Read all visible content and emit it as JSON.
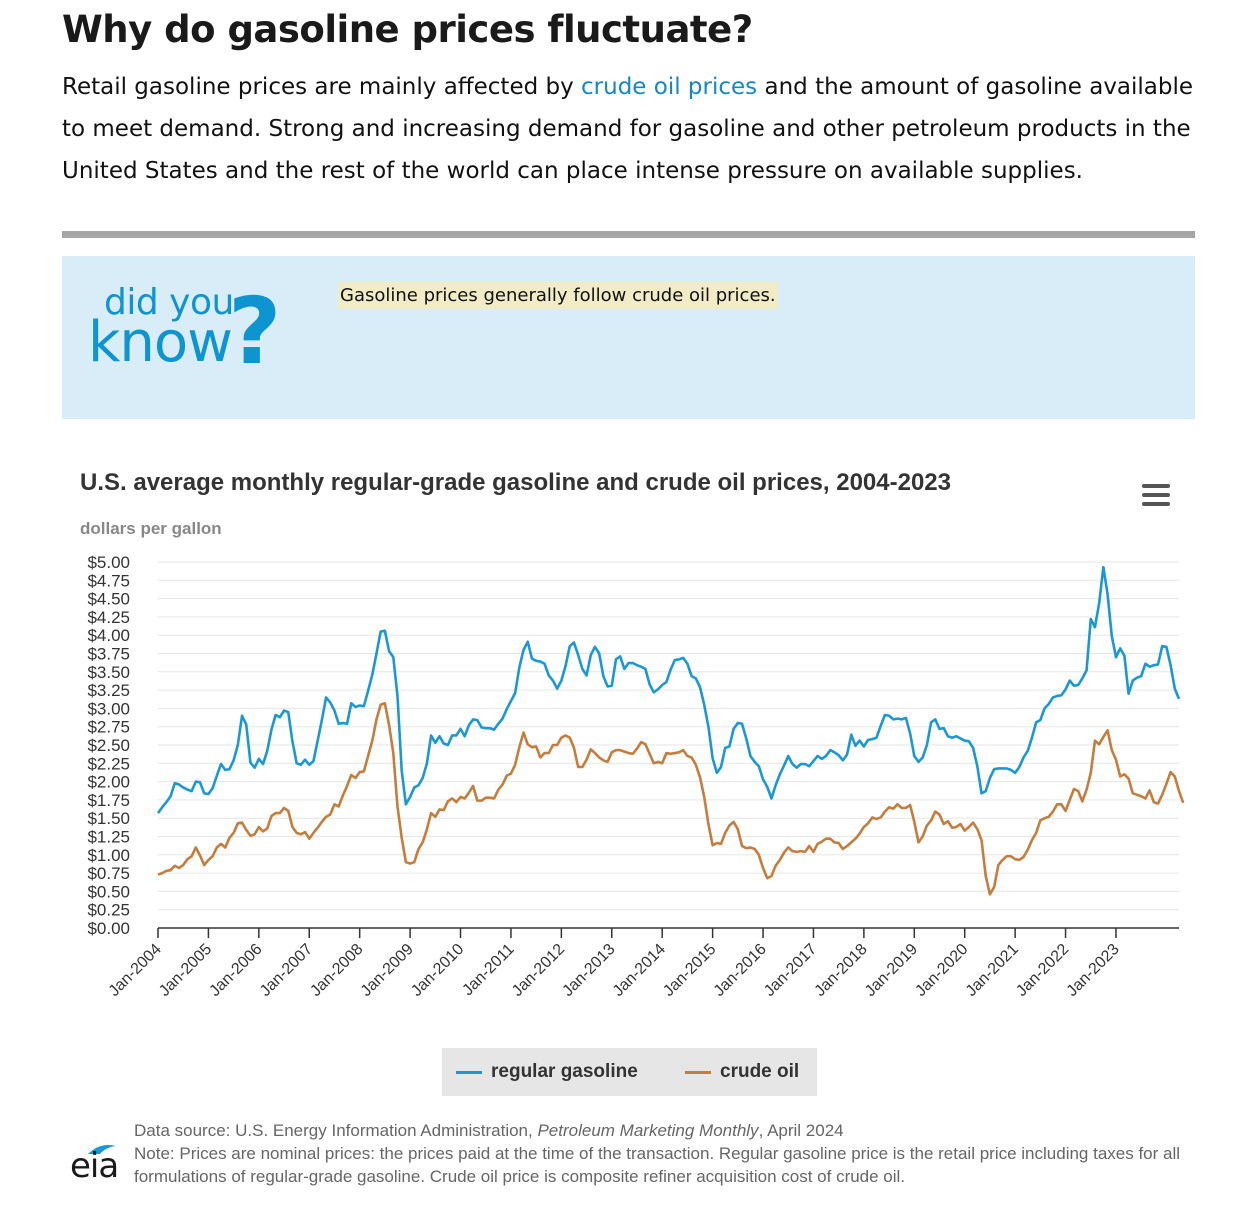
{
  "heading": "Why do gasoline prices fluctuate?",
  "intro": {
    "before": "Retail gasoline prices are mainly affected by ",
    "link": "crude oil prices",
    "after": " and the amount of gasoline available to meet demand. Strong and increasing demand for gasoline and other petroleum products in the United States and the rest of the world can place intense pressure on available supplies."
  },
  "did_you_know": {
    "line1": "did you",
    "line2": "know",
    "mark": "?",
    "fact": "Gasoline prices generally follow crude oil prices."
  },
  "menu_icon": "hamburger-menu-icon",
  "footer": {
    "logo_text": "eia",
    "source_prefix": "Data source: U.S. Energy Information Administration, ",
    "source_italic": "Petroleum Marketing Monthly",
    "source_suffix": ", April 2024",
    "note": "Note: Prices are nominal prices: the prices paid at the time of the transaction. Regular gasoline price is the retail price including taxes for all formulations of regular-grade gasoline. Crude oil price is composite refiner acquisition cost of crude oil."
  },
  "chart_data": {
    "type": "line",
    "title": "U.S. average monthly regular-grade gasoline and crude oil prices, 2004-2023",
    "ylabel": "dollars per gallon",
    "xlabel": "",
    "ylim": [
      0,
      5
    ],
    "ytick_labels": [
      "$0.00",
      "$0.25",
      "$0.50",
      "$0.75",
      "$1.00",
      "$1.25",
      "$1.50",
      "$1.75",
      "$2.00",
      "$2.25",
      "$2.50",
      "$2.75",
      "$3.00",
      "$3.25",
      "$3.50",
      "$3.75",
      "$4.00",
      "$4.25",
      "$4.50",
      "$4.75",
      "$5.00"
    ],
    "xtick_labels": [
      "Jan-2004",
      "Jan-2005",
      "Jan-2006",
      "Jan-2007",
      "Jan-2008",
      "Jan-2009",
      "Jan-2010",
      "Jan-2011",
      "Jan-2012",
      "Jan-2013",
      "Jan-2014",
      "Jan-2015",
      "Jan-2016",
      "Jan-2017",
      "Jan-2018",
      "Jan-2019",
      "Jan-2020",
      "Jan-2021",
      "Jan-2022",
      "Jan-2023"
    ],
    "grid": true,
    "legend_position": "bottom",
    "colors": {
      "gasoline": "#1b98d3",
      "crude": "#c57d3e"
    },
    "x_start": "Jan-2004",
    "frequency": "monthly",
    "series": [
      {
        "name": "regular gasoline",
        "values": [
          1.57,
          1.65,
          1.72,
          1.8,
          1.98,
          1.96,
          1.92,
          1.89,
          1.87,
          2.0,
          1.99,
          1.84,
          1.83,
          1.91,
          2.08,
          2.24,
          2.16,
          2.17,
          2.29,
          2.5,
          2.9,
          2.78,
          2.26,
          2.19,
          2.31,
          2.24,
          2.42,
          2.71,
          2.91,
          2.88,
          2.97,
          2.95,
          2.55,
          2.25,
          2.23,
          2.3,
          2.23,
          2.28,
          2.56,
          2.84,
          3.15,
          3.08,
          2.97,
          2.79,
          2.8,
          2.79,
          3.07,
          3.02,
          3.04,
          3.03,
          3.24,
          3.46,
          3.75,
          4.05,
          4.06,
          3.78,
          3.7,
          3.17,
          2.15,
          1.69,
          1.79,
          1.92,
          1.95,
          2.05,
          2.25,
          2.63,
          2.53,
          2.62,
          2.52,
          2.5,
          2.63,
          2.63,
          2.72,
          2.62,
          2.77,
          2.85,
          2.84,
          2.74,
          2.73,
          2.73,
          2.71,
          2.79,
          2.86,
          2.99,
          3.1,
          3.21,
          3.56,
          3.8,
          3.91,
          3.68,
          3.65,
          3.64,
          3.61,
          3.45,
          3.38,
          3.27,
          3.38,
          3.58,
          3.85,
          3.9,
          3.73,
          3.54,
          3.45,
          3.73,
          3.84,
          3.75,
          3.44,
          3.3,
          3.31,
          3.67,
          3.71,
          3.54,
          3.62,
          3.62,
          3.59,
          3.57,
          3.54,
          3.33,
          3.22,
          3.26,
          3.32,
          3.36,
          3.53,
          3.66,
          3.67,
          3.69,
          3.61,
          3.44,
          3.41,
          3.29,
          3.05,
          2.75,
          2.32,
          2.12,
          2.2,
          2.46,
          2.48,
          2.72,
          2.8,
          2.79,
          2.59,
          2.35,
          2.27,
          2.21,
          2.03,
          1.93,
          1.77,
          1.95,
          2.1,
          2.22,
          2.35,
          2.24,
          2.19,
          2.24,
          2.24,
          2.21,
          2.28,
          2.35,
          2.31,
          2.35,
          2.43,
          2.4,
          2.36,
          2.29,
          2.37,
          2.64,
          2.49,
          2.56,
          2.48,
          2.57,
          2.58,
          2.6,
          2.76,
          2.91,
          2.9,
          2.85,
          2.86,
          2.85,
          2.87,
          2.66,
          2.35,
          2.27,
          2.33,
          2.5,
          2.81,
          2.85,
          2.72,
          2.73,
          2.62,
          2.6,
          2.62,
          2.59,
          2.56,
          2.55,
          2.46,
          2.21,
          1.84,
          1.87,
          2.05,
          2.17,
          2.18,
          2.18,
          2.18,
          2.16,
          2.12,
          2.2,
          2.33,
          2.42,
          2.6,
          2.81,
          2.84,
          3.0,
          3.06,
          3.15,
          3.17,
          3.18,
          3.26,
          3.38,
          3.31,
          3.32,
          3.41,
          3.52,
          4.22,
          4.11,
          4.44,
          4.93,
          4.56,
          3.99,
          3.7,
          3.82,
          3.72,
          3.2,
          3.38,
          3.42,
          3.44,
          3.61,
          3.57,
          3.59,
          3.6,
          3.85,
          3.84,
          3.59,
          3.27,
          3.13
        ]
      },
      {
        "name": "crude oil",
        "values": [
          0.73,
          0.75,
          0.78,
          0.79,
          0.85,
          0.82,
          0.86,
          0.94,
          0.98,
          1.1,
          0.99,
          0.86,
          0.93,
          0.98,
          1.1,
          1.15,
          1.1,
          1.23,
          1.3,
          1.43,
          1.44,
          1.34,
          1.26,
          1.28,
          1.38,
          1.32,
          1.36,
          1.53,
          1.57,
          1.57,
          1.64,
          1.6,
          1.38,
          1.3,
          1.28,
          1.31,
          1.22,
          1.3,
          1.37,
          1.45,
          1.52,
          1.55,
          1.69,
          1.66,
          1.81,
          1.94,
          2.09,
          2.05,
          2.13,
          2.14,
          2.35,
          2.56,
          2.85,
          3.05,
          3.07,
          2.77,
          2.39,
          1.66,
          1.23,
          0.9,
          0.88,
          0.9,
          1.08,
          1.17,
          1.35,
          1.57,
          1.52,
          1.62,
          1.61,
          1.73,
          1.77,
          1.72,
          1.79,
          1.77,
          1.85,
          1.94,
          1.74,
          1.74,
          1.78,
          1.78,
          1.77,
          1.89,
          1.96,
          2.08,
          2.11,
          2.23,
          2.47,
          2.67,
          2.51,
          2.47,
          2.48,
          2.33,
          2.39,
          2.39,
          2.5,
          2.5,
          2.6,
          2.63,
          2.6,
          2.46,
          2.2,
          2.2,
          2.3,
          2.44,
          2.39,
          2.33,
          2.29,
          2.27,
          2.4,
          2.43,
          2.43,
          2.41,
          2.39,
          2.38,
          2.45,
          2.54,
          2.51,
          2.38,
          2.25,
          2.27,
          2.25,
          2.39,
          2.38,
          2.39,
          2.4,
          2.43,
          2.35,
          2.33,
          2.23,
          2.06,
          1.79,
          1.42,
          1.13,
          1.16,
          1.15,
          1.3,
          1.4,
          1.45,
          1.35,
          1.12,
          1.09,
          1.1,
          1.08,
          1.0,
          0.82,
          0.68,
          0.71,
          0.85,
          0.93,
          1.03,
          1.1,
          1.05,
          1.04,
          1.05,
          1.04,
          1.12,
          1.04,
          1.15,
          1.18,
          1.22,
          1.22,
          1.17,
          1.16,
          1.08,
          1.12,
          1.17,
          1.22,
          1.29,
          1.38,
          1.43,
          1.51,
          1.49,
          1.51,
          1.59,
          1.65,
          1.63,
          1.69,
          1.64,
          1.64,
          1.68,
          1.45,
          1.17,
          1.25,
          1.4,
          1.47,
          1.59,
          1.55,
          1.42,
          1.46,
          1.37,
          1.38,
          1.42,
          1.33,
          1.38,
          1.44,
          1.35,
          1.2,
          0.71,
          0.46,
          0.56,
          0.86,
          0.93,
          0.98,
          0.98,
          0.94,
          0.93,
          0.97,
          1.07,
          1.2,
          1.3,
          1.47,
          1.5,
          1.52,
          1.59,
          1.69,
          1.69,
          1.6,
          1.75,
          1.9,
          1.87,
          1.73,
          1.89,
          2.12,
          2.56,
          2.51,
          2.61,
          2.7,
          2.43,
          2.3,
          2.07,
          2.1,
          2.04,
          1.84,
          1.82,
          1.8,
          1.77,
          1.88,
          1.72,
          1.7,
          1.82,
          1.97,
          2.13,
          2.07,
          1.87,
          1.71
        ]
      }
    ]
  }
}
